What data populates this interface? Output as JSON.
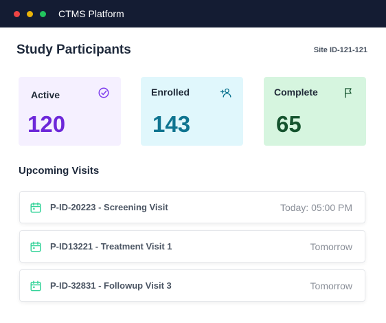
{
  "window": {
    "title": "CTMS Platform",
    "controls": [
      {
        "name": "close",
        "color": "#ef4444"
      },
      {
        "name": "minimize",
        "color": "#eab308"
      },
      {
        "name": "maximize",
        "color": "#22c55e"
      }
    ]
  },
  "header": {
    "title": "Study Participants",
    "site_id": "Site ID-121-121"
  },
  "cards": {
    "active": {
      "label": "Active",
      "value": "120",
      "icon": "check-circle-icon",
      "accent": "#6d28d9"
    },
    "enrolled": {
      "label": "Enrolled",
      "value": "143",
      "icon": "add-user-icon",
      "accent": "#0e7490"
    },
    "complete": {
      "label": "Complete",
      "value": "65",
      "icon": "flag-icon",
      "accent": "#15532e"
    }
  },
  "visits": {
    "title": "Upcoming Visits",
    "items": [
      {
        "name": "P-ID-20223 - Screening Visit",
        "time": "Today: 05:00 PM"
      },
      {
        "name": "P-ID13221 - Treatment Visit 1",
        "time": "Tomorrow"
      },
      {
        "name": "P-ID-32831 - Followup Visit 3",
        "time": "Tomorrow"
      }
    ],
    "icon": "calendar-icon",
    "icon_color": "#34d399"
  }
}
